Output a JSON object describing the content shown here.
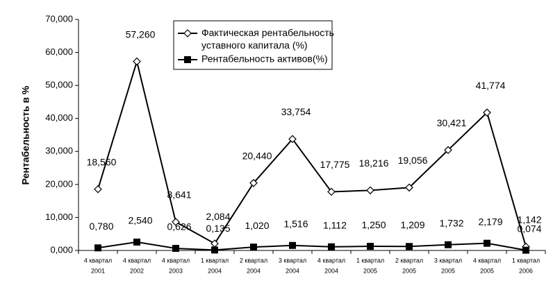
{
  "chart_data": {
    "type": "line",
    "y_label": "Рентабельность в %",
    "categories": [
      [
        "4 квартал",
        "2001"
      ],
      [
        "4 квартал",
        "2002"
      ],
      [
        "4 квартал",
        "2003"
      ],
      [
        "1 квартал",
        "2004"
      ],
      [
        "2 квартал",
        "2004"
      ],
      [
        "3 квартал",
        "2004"
      ],
      [
        "4 квартал",
        "2004"
      ],
      [
        "1 квартал",
        "2005"
      ],
      [
        "2 квартал",
        "2005"
      ],
      [
        "3 квартал",
        "2005"
      ],
      [
        "4 квартал",
        "2005"
      ],
      [
        "1 квартал",
        "2006"
      ]
    ],
    "series": [
      {
        "name": "Фактическая рентабельность уставного капитала (%)",
        "color": "#000000",
        "marker": "diamond",
        "values": [
          18.56,
          57.26,
          8.641,
          2.084,
          20.44,
          33.754,
          17.775,
          18.216,
          19.056,
          30.421,
          41.774,
          1.142
        ],
        "value_labels": [
          "18,560",
          "57,260",
          "8,641",
          "2,084",
          "20,440",
          "33,754",
          "17,775",
          "18,216",
          "19,056",
          "30,421",
          "41,774",
          "1,142"
        ]
      },
      {
        "name": "Рентабельность активов(%)",
        "color": "#000000",
        "marker": "square",
        "values": [
          0.78,
          2.54,
          0.626,
          0.135,
          1.02,
          1.516,
          1.112,
          1.25,
          1.209,
          1.732,
          2.179,
          0.074
        ],
        "value_labels": [
          "0,780",
          "2,540",
          "0,626",
          "0,135",
          "1,020",
          "1,516",
          "1,112",
          "1,250",
          "1,209",
          "1,732",
          "2,179",
          "0,074"
        ]
      }
    ],
    "ylim": [
      0,
      70
    ],
    "yticks": [
      {
        "value": 0,
        "label": "0,000"
      },
      {
        "value": 10,
        "label": "10,000"
      },
      {
        "value": 20,
        "label": "20,000"
      },
      {
        "value": 30,
        "label": "30,000"
      },
      {
        "value": 40,
        "label": "40,000"
      },
      {
        "value": 50,
        "label": "50,000"
      },
      {
        "value": 60,
        "label": "60,000"
      },
      {
        "value": 70,
        "label": "70,000"
      }
    ],
    "grid": false
  }
}
